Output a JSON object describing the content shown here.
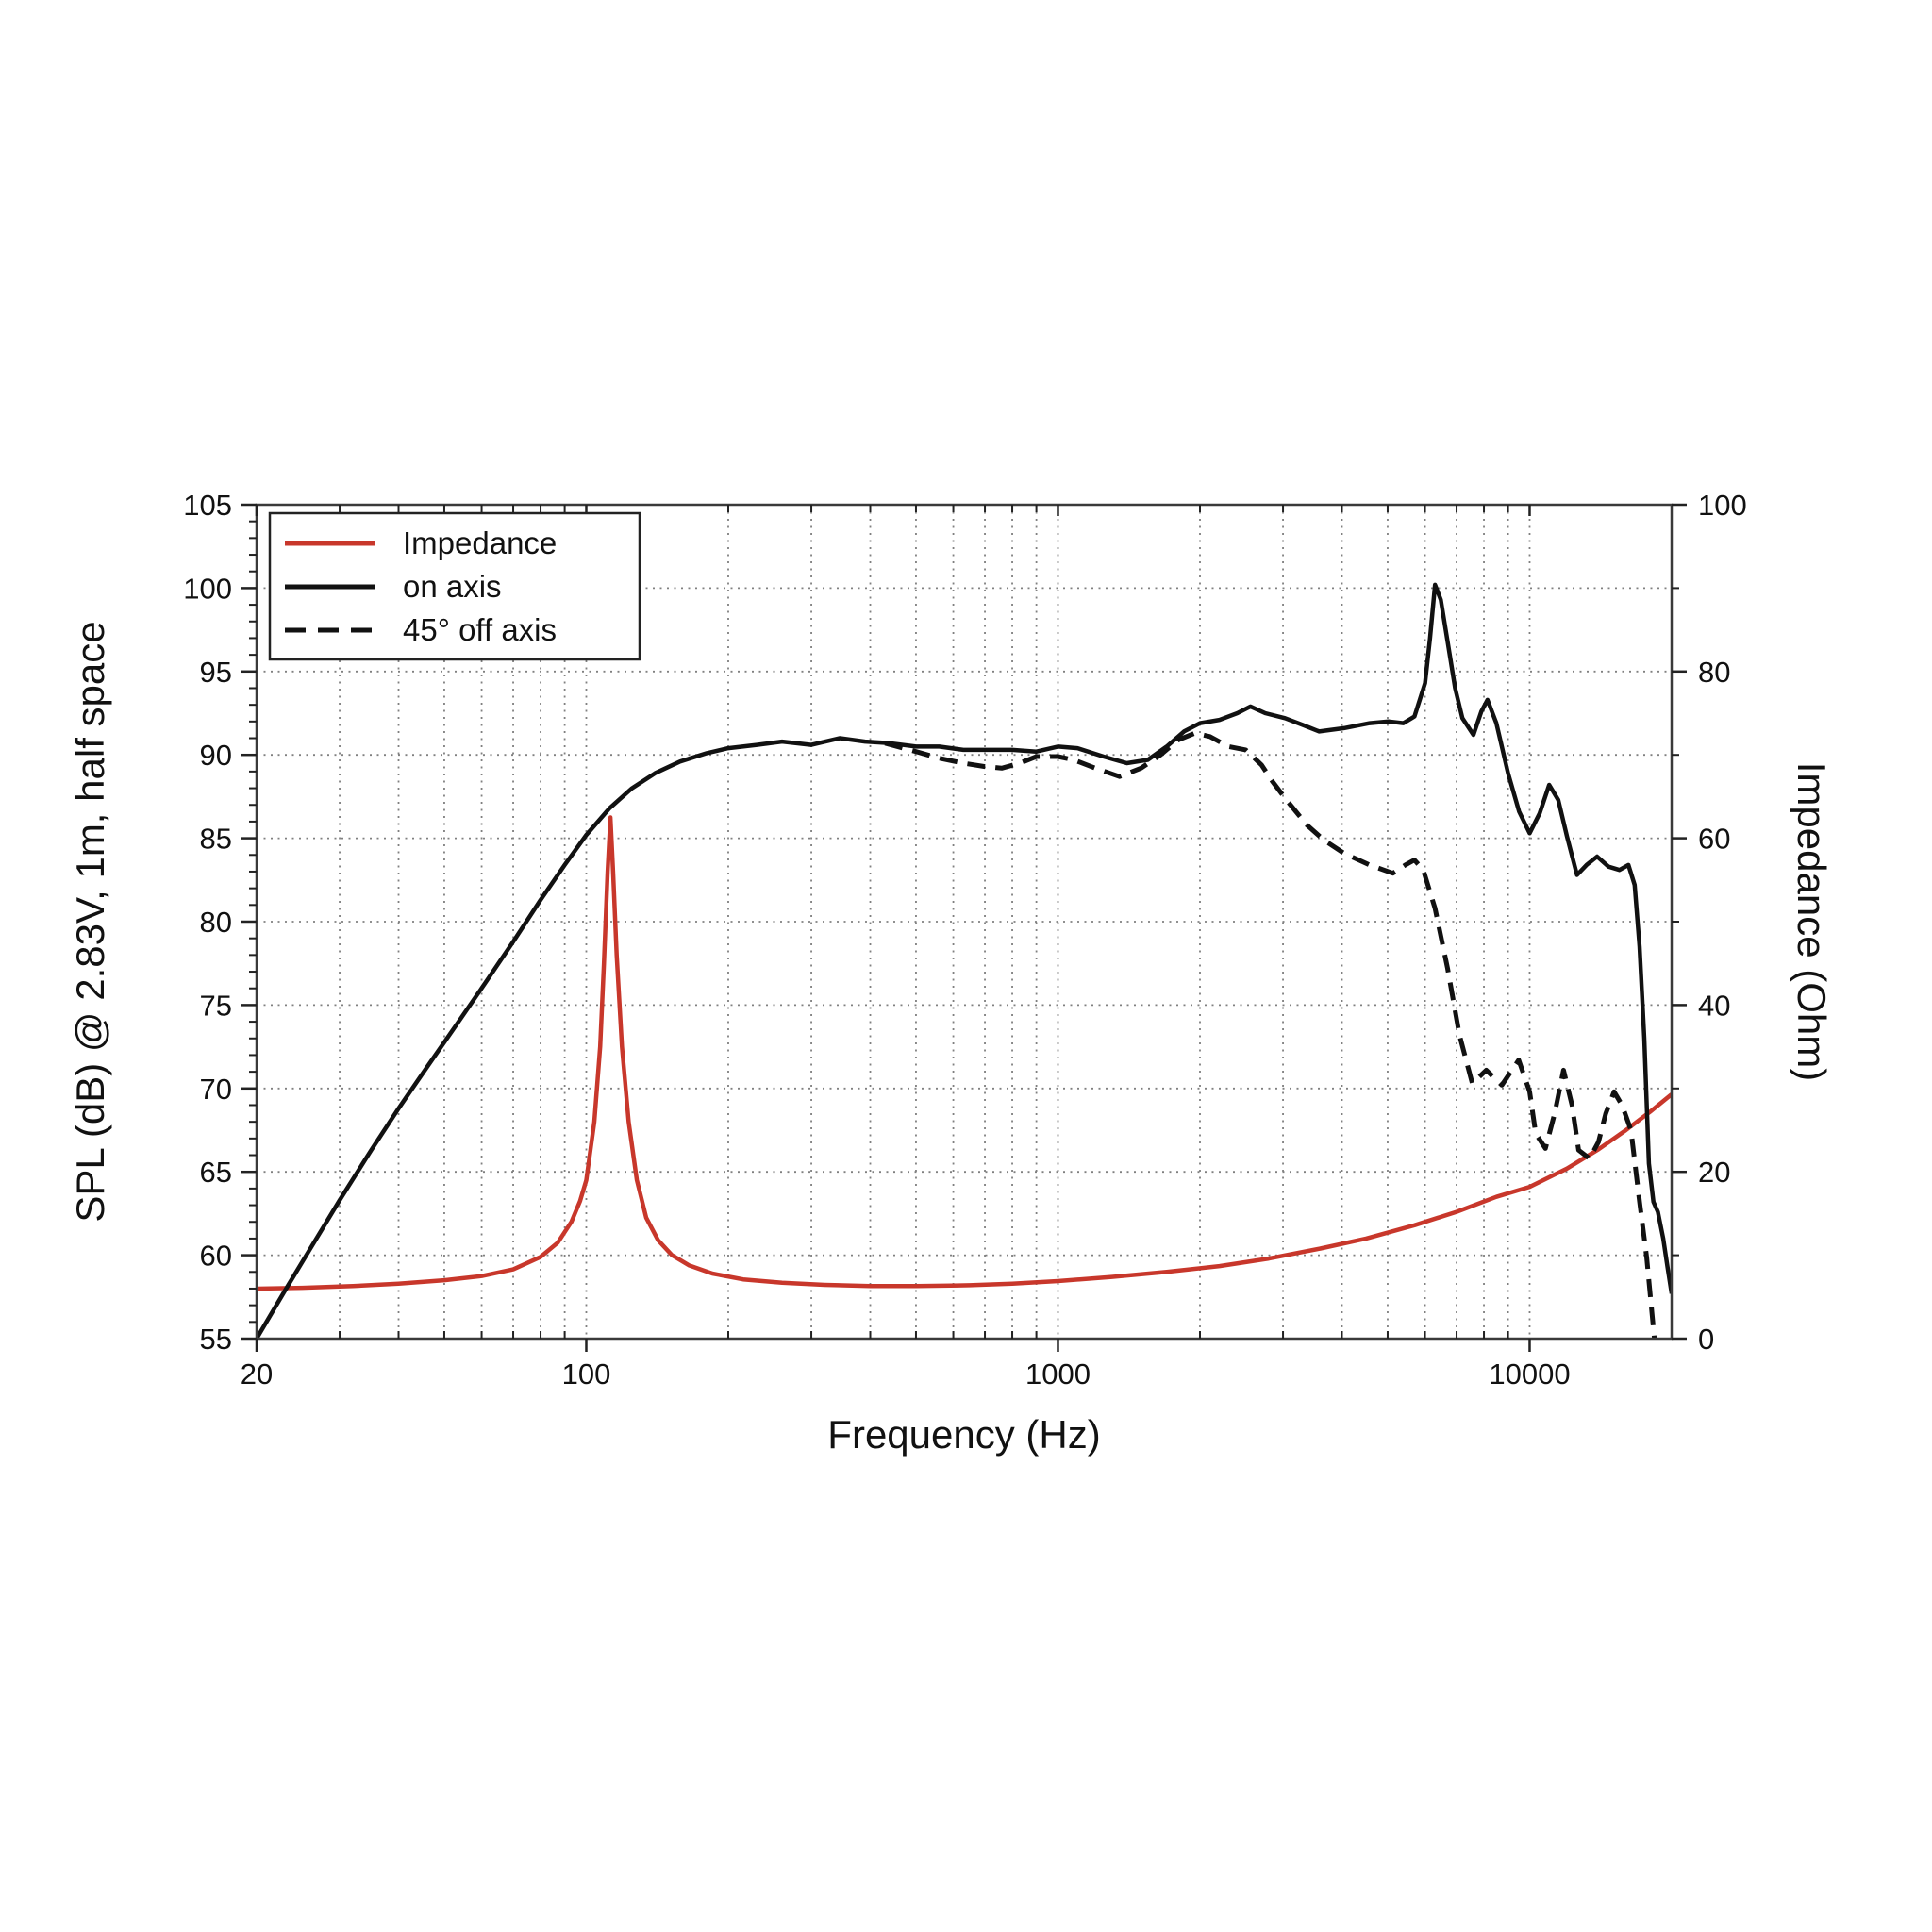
{
  "page": {
    "background": "#ffffff"
  },
  "chart_data": {
    "type": "line",
    "title": "",
    "xlabel": "Frequency (Hz)",
    "ylabel_left": "SPL (dB) @ 2.83V, 1m, half space",
    "ylabel_right": "Impedance (Ohm)",
    "x_scale": "log",
    "x_range": [
      20,
      20000
    ],
    "y_left_range": [
      55,
      105
    ],
    "y_right_range": [
      0,
      100
    ],
    "grid": "dotted",
    "colors": {
      "impedance": "#c8372b",
      "spl": "#111111",
      "grid": "#808080",
      "frame": "#3a3a3a"
    },
    "x_ticks": [
      {
        "f": 20,
        "label": "20"
      },
      {
        "f": 100,
        "label": "100"
      },
      {
        "f": 1000,
        "label": "1000"
      },
      {
        "f": 10000,
        "label": "10000"
      }
    ],
    "y_left_ticks": [
      55,
      60,
      65,
      70,
      75,
      80,
      85,
      90,
      95,
      100,
      105
    ],
    "y_right_ticks": [
      0,
      20,
      40,
      60,
      80,
      100
    ],
    "legend": {
      "position": "top-left",
      "entries": [
        {
          "label": "Impedance",
          "color": "#c8372b",
          "style": "solid"
        },
        {
          "label": "on axis",
          "color": "#111111",
          "style": "solid"
        },
        {
          "label": "45° off axis",
          "color": "#111111",
          "style": "dashed"
        }
      ]
    },
    "series": [
      {
        "name": "Impedance",
        "axis": "right",
        "unit": "Ohm",
        "color": "#c8372b",
        "style": "solid",
        "points": [
          [
            20,
            6.0
          ],
          [
            25,
            6.1
          ],
          [
            32,
            6.3
          ],
          [
            40,
            6.6
          ],
          [
            50,
            7.0
          ],
          [
            60,
            7.5
          ],
          [
            70,
            8.3
          ],
          [
            80,
            9.8
          ],
          [
            87,
            11.5
          ],
          [
            93,
            14
          ],
          [
            97,
            16.5
          ],
          [
            100,
            19
          ],
          [
            104,
            26
          ],
          [
            107,
            35
          ],
          [
            109,
            45
          ],
          [
            111,
            56
          ],
          [
            112.5,
            62.5
          ],
          [
            114,
            56
          ],
          [
            116,
            46
          ],
          [
            119,
            35
          ],
          [
            123,
            26
          ],
          [
            128,
            19
          ],
          [
            134,
            14.5
          ],
          [
            142,
            11.8
          ],
          [
            152,
            10
          ],
          [
            165,
            8.8
          ],
          [
            185,
            7.8
          ],
          [
            215,
            7.1
          ],
          [
            260,
            6.7
          ],
          [
            320,
            6.45
          ],
          [
            400,
            6.3
          ],
          [
            500,
            6.3
          ],
          [
            650,
            6.4
          ],
          [
            800,
            6.6
          ],
          [
            1000,
            6.9
          ],
          [
            1300,
            7.4
          ],
          [
            1700,
            8.0
          ],
          [
            2200,
            8.7
          ],
          [
            2800,
            9.6
          ],
          [
            3600,
            10.8
          ],
          [
            4500,
            12.0
          ],
          [
            5700,
            13.6
          ],
          [
            7000,
            15.2
          ],
          [
            8500,
            17.0
          ],
          [
            10000,
            18.2
          ],
          [
            12000,
            20.4
          ],
          [
            14000,
            22.7
          ],
          [
            16000,
            25.0
          ],
          [
            18000,
            27.2
          ],
          [
            20000,
            29.3
          ]
        ]
      },
      {
        "name": "on axis",
        "axis": "left",
        "unit": "dB",
        "color": "#111111",
        "style": "solid",
        "points": [
          [
            20,
            55.0
          ],
          [
            23,
            57.9
          ],
          [
            26,
            60.4
          ],
          [
            30,
            63.3
          ],
          [
            35,
            66.3
          ],
          [
            40,
            68.8
          ],
          [
            46,
            71.3
          ],
          [
            53,
            73.8
          ],
          [
            61,
            76.3
          ],
          [
            70,
            78.8
          ],
          [
            80,
            81.3
          ],
          [
            90,
            83.4
          ],
          [
            100,
            85.2
          ],
          [
            112,
            86.8
          ],
          [
            125,
            88.0
          ],
          [
            140,
            88.9
          ],
          [
            158,
            89.6
          ],
          [
            180,
            90.1
          ],
          [
            200,
            90.4
          ],
          [
            230,
            90.6
          ],
          [
            260,
            90.8
          ],
          [
            300,
            90.6
          ],
          [
            345,
            91.0
          ],
          [
            390,
            90.8
          ],
          [
            440,
            90.7
          ],
          [
            500,
            90.5
          ],
          [
            560,
            90.5
          ],
          [
            630,
            90.3
          ],
          [
            710,
            90.3
          ],
          [
            800,
            90.3
          ],
          [
            900,
            90.2
          ],
          [
            1000,
            90.5
          ],
          [
            1100,
            90.4
          ],
          [
            1250,
            89.9
          ],
          [
            1400,
            89.5
          ],
          [
            1550,
            89.7
          ],
          [
            1700,
            90.5
          ],
          [
            1850,
            91.4
          ],
          [
            2000,
            91.9
          ],
          [
            2200,
            92.1
          ],
          [
            2400,
            92.5
          ],
          [
            2560,
            92.9
          ],
          [
            2750,
            92.5
          ],
          [
            3030,
            92.2
          ],
          [
            3300,
            91.8
          ],
          [
            3580,
            91.4
          ],
          [
            4040,
            91.6
          ],
          [
            4580,
            91.9
          ],
          [
            5030,
            92.0
          ],
          [
            5400,
            91.9
          ],
          [
            5700,
            92.3
          ],
          [
            6000,
            94.3
          ],
          [
            6150,
            97.0
          ],
          [
            6300,
            100.2
          ],
          [
            6480,
            99.3
          ],
          [
            6700,
            96.8
          ],
          [
            6950,
            94.0
          ],
          [
            7200,
            92.2
          ],
          [
            7600,
            91.2
          ],
          [
            7900,
            92.6
          ],
          [
            8140,
            93.3
          ],
          [
            8500,
            91.9
          ],
          [
            9000,
            88.9
          ],
          [
            9500,
            86.6
          ],
          [
            10000,
            85.3
          ],
          [
            10500,
            86.5
          ],
          [
            11000,
            88.2
          ],
          [
            11500,
            87.3
          ],
          [
            12000,
            85.1
          ],
          [
            12600,
            82.8
          ],
          [
            13200,
            83.4
          ],
          [
            13900,
            83.9
          ],
          [
            14700,
            83.3
          ],
          [
            15500,
            83.1
          ],
          [
            16200,
            83.4
          ],
          [
            16700,
            82.2
          ],
          [
            17100,
            78.5
          ],
          [
            17500,
            73.0
          ],
          [
            17900,
            65.5
          ],
          [
            18300,
            63.2
          ],
          [
            18700,
            62.6
          ],
          [
            19200,
            61.0
          ],
          [
            19600,
            59.3
          ],
          [
            20000,
            57.7
          ]
        ]
      },
      {
        "name": "45° off axis",
        "axis": "left",
        "unit": "dB",
        "color": "#111111",
        "style": "dashed",
        "points": [
          [
            430,
            90.7
          ],
          [
            500,
            90.2
          ],
          [
            560,
            89.8
          ],
          [
            630,
            89.5
          ],
          [
            700,
            89.3
          ],
          [
            760,
            89.2
          ],
          [
            830,
            89.5
          ],
          [
            900,
            89.9
          ],
          [
            1000,
            89.9
          ],
          [
            1080,
            89.7
          ],
          [
            1200,
            89.2
          ],
          [
            1350,
            88.7
          ],
          [
            1500,
            89.2
          ],
          [
            1650,
            90.0
          ],
          [
            1800,
            90.9
          ],
          [
            1950,
            91.3
          ],
          [
            2100,
            91.1
          ],
          [
            2300,
            90.5
          ],
          [
            2500,
            90.3
          ],
          [
            2700,
            89.4
          ],
          [
            2850,
            88.4
          ],
          [
            3050,
            87.3
          ],
          [
            3370,
            85.8
          ],
          [
            3660,
            84.9
          ],
          [
            4040,
            84.1
          ],
          [
            4580,
            83.4
          ],
          [
            5130,
            82.9
          ],
          [
            5450,
            83.4
          ],
          [
            5700,
            83.7
          ],
          [
            5950,
            83.1
          ],
          [
            6300,
            80.8
          ],
          [
            6700,
            77.2
          ],
          [
            7100,
            73.2
          ],
          [
            7560,
            70.3
          ],
          [
            8090,
            71.1
          ],
          [
            8730,
            70.2
          ],
          [
            9480,
            71.7
          ],
          [
            10000,
            69.8
          ],
          [
            10300,
            67.3
          ],
          [
            10800,
            66.4
          ],
          [
            11300,
            68.5
          ],
          [
            11800,
            71.1
          ],
          [
            12300,
            69.0
          ],
          [
            12700,
            66.3
          ],
          [
            13400,
            65.8
          ],
          [
            14000,
            66.8
          ],
          [
            14500,
            68.5
          ],
          [
            15100,
            69.8
          ],
          [
            15700,
            69.0
          ],
          [
            16400,
            67.5
          ],
          [
            17100,
            63.2
          ],
          [
            17700,
            59.9
          ],
          [
            18300,
            55.6
          ],
          [
            18600,
            53.5
          ]
        ]
      }
    ]
  }
}
